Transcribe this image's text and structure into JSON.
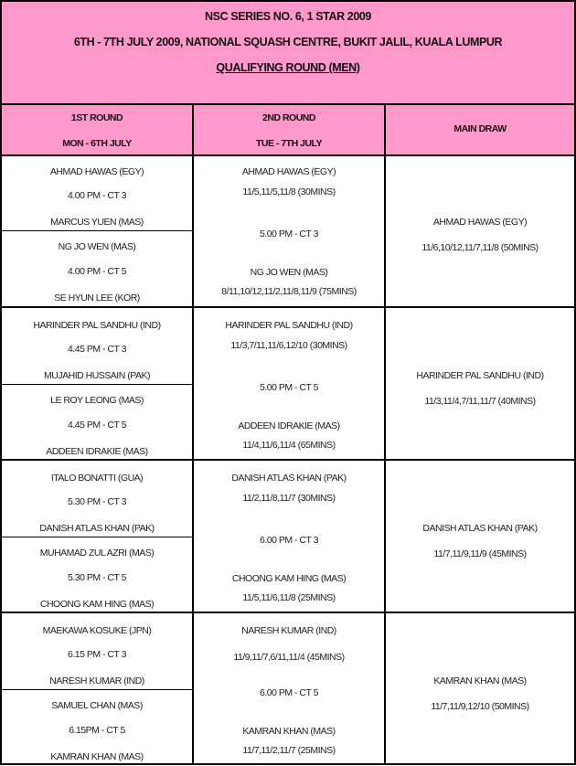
{
  "header": {
    "title": "NSC SERIES NO. 6, 1 STAR  2009",
    "subtitle": "6TH - 7TH JULY 2009, NATIONAL SQUASH CENTRE, BUKIT JALIL, KUALA LUMPUR",
    "section": "QUALIFYING ROUND (MEN)"
  },
  "columns": [
    {
      "round": "1ST ROUND",
      "day": "MON - 6TH JULY"
    },
    {
      "round": "2ND ROUND",
      "day": "TUE - 7TH JULY"
    },
    {
      "round": "MAIN DRAW"
    }
  ],
  "blocks": [
    {
      "r1": [
        {
          "p1": "AHMAD HAWAS (EGY)",
          "time": "4.00 PM - CT 3",
          "p2": "MARCUS YUEN (MAS)"
        },
        {
          "p1": "NG JO WEN (MAS)",
          "time": "4.00 PM - CT 5",
          "p2": "SE HYUN LEE (KOR)"
        }
      ],
      "r2": {
        "w1": "AHMAD HAWAS (EGY)",
        "s1": "11/5,11/5,11/8 (30MINS)",
        "time": "5.00 PM - CT 3",
        "w2": "NG JO WEN (MAS)",
        "s2": "8/11,10/12,11/2,11/8,11/9 (75MINS)"
      },
      "main": {
        "winner": "AHMAD HAWAS (EGY)",
        "score": "11/6,10/12,11/7,11/8 (50MINS)"
      }
    },
    {
      "r1": [
        {
          "p1": "HARINDER PAL SANDHU (IND)",
          "time": "4.45 PM - CT 3",
          "p2": "MUJAHID HUSSAIN (PAK)"
        },
        {
          "p1": "LE ROY LEONG (MAS)",
          "time": "4.45 PM - CT 5",
          "p2": "ADDEEN IDRAKIE (MAS)"
        }
      ],
      "r2": {
        "w1": "HARINDER PAL SANDHU (IND)",
        "s1": "11/3,7/11,11/6,12/10 (30MINS)",
        "time": "5.00 PM - CT 5",
        "w2": "ADDEEN IDRAKIE (MAS)",
        "s2": "11/4,11/6,11/4 (65MINS)"
      },
      "main": {
        "winner": "HARINDER PAL SANDHU (IND)",
        "score": "11/3,11/4,7/11,11/7 (40MINS)"
      }
    },
    {
      "r1": [
        {
          "p1": "ITALO BONATTI (GUA)",
          "time": "5.30 PM - CT 3",
          "p2": "DANISH ATLAS KHAN (PAK)"
        },
        {
          "p1": "MUHAMAD ZUL AZRI (MAS)",
          "time": "5.30 PM - CT 5",
          "p2": "CHOONG KAM HING (MAS)"
        }
      ],
      "r2": {
        "w1": "DANISH ATLAS KHAN (PAK)",
        "s1": "11/2,11/8,11/7 (30MINS)",
        "time": "6.00 PM - CT 3",
        "w2": "CHOONG KAM HING (MAS)",
        "s2": "11/5,11/6,11/8 (25MINS)"
      },
      "main": {
        "winner": "DANISH ATLAS KHAN (PAK)",
        "score": "11/7,11/9,11/9 (45MINS)"
      }
    },
    {
      "r1": [
        {
          "p1": "MAEKAWA KOSUKE (JPN)",
          "time": "6.15 PM - CT 3",
          "p2": "NARESH KUMAR (IND)"
        },
        {
          "p1": "SAMUEL CHAN (MAS)",
          "time": "6.15PM - CT 5",
          "p2": "KAMRAN KHAN (MAS)"
        }
      ],
      "r2": {
        "w1": "NARESH KUMAR (IND)",
        "s1": "11/9,11/7,6/11,11/4 (45MINS)",
        "time": "6.00 PM - CT 5",
        "w2": "KAMRAN KHAN (MAS)",
        "s2": "11/7,11/2,11/7 (25MINS)"
      },
      "main": {
        "winner": "KAMRAN KHAN (MAS)",
        "score": "11/7,11/9,12/10 (50MINS)"
      }
    }
  ]
}
